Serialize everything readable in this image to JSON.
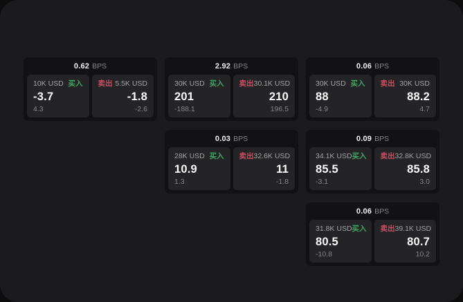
{
  "labels": {
    "buy": "买入",
    "sell": "卖出",
    "bps_unit": "BPS"
  },
  "colors": {
    "page_bg": "#0d0d0d",
    "window_bg": "#1b1b1d",
    "card_bg": "#121214",
    "panel_bg": "#242427",
    "buy_accent": "#3fa564",
    "sell_accent": "#cc4e63",
    "main_text": "#fafafa",
    "muted_text": "#86868b"
  },
  "cards": [
    {
      "bps": "0.62",
      "buy_amount": "10K USD",
      "buy_main": "-3.7",
      "buy_sub": "4.3",
      "sell_amount": "5.5K USD",
      "sell_main": "-1.8",
      "sell_sub": "-2.6"
    },
    {
      "bps": "2.92",
      "buy_amount": "30K USD",
      "buy_main": "201",
      "buy_sub": "-188.1",
      "sell_amount": "30.1K USD",
      "sell_main": "210",
      "sell_sub": "196.5"
    },
    {
      "bps": "0.06",
      "buy_amount": "30K USD",
      "buy_main": "88",
      "buy_sub": "-4.9",
      "sell_amount": "30K USD",
      "sell_main": "88.2",
      "sell_sub": "4.7"
    },
    {
      "bps": "0.03",
      "buy_amount": "28K USD",
      "buy_main": "10.9",
      "buy_sub": "1.3",
      "sell_amount": "32.6K USD",
      "sell_main": "11",
      "sell_sub": "-1.8"
    },
    {
      "bps": "0.09",
      "buy_amount": "34.1K USD",
      "buy_main": "85.5",
      "buy_sub": "-3.1",
      "sell_amount": "32.8K USD",
      "sell_main": "85.8",
      "sell_sub": "3.0"
    },
    {
      "bps": "0.06",
      "buy_amount": "31.8K USD",
      "buy_main": "80.5",
      "buy_sub": "-10.8",
      "sell_amount": "39.1K USD",
      "sell_main": "80.7",
      "sell_sub": "10.2"
    }
  ]
}
